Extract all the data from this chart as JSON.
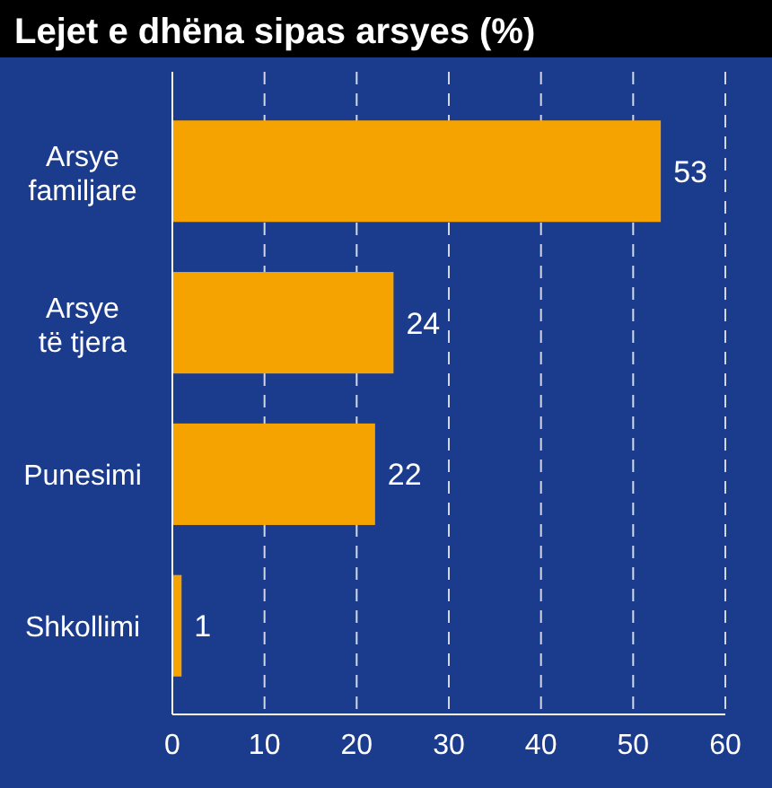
{
  "chart_data": {
    "type": "bar",
    "orientation": "horizontal",
    "title": "Lejet e dhëna sipas arsyes (%)",
    "categories": [
      "Arsye\nfamiljare",
      "Arsye\ntë tjera",
      "Punesimi",
      "Shkollimi"
    ],
    "values": [
      53,
      24,
      22,
      1
    ],
    "color": "#f5a300",
    "xlim": [
      0,
      60
    ],
    "xticks": [
      0,
      10,
      20,
      30,
      40,
      50,
      60
    ],
    "grid": "x",
    "data_labels": true
  }
}
